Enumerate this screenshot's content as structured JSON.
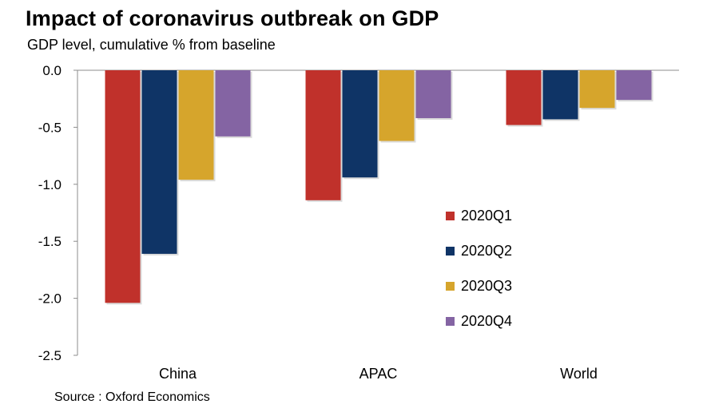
{
  "title": "Impact of coronavirus outbreak on GDP",
  "subtitle": "GDP level, cumulative % from baseline",
  "source": "Source : Oxford Economics",
  "chart_data": {
    "type": "bar",
    "categories": [
      "China",
      "APAC",
      "World"
    ],
    "series": [
      {
        "name": "2020Q1",
        "color": "#c0312b",
        "values": [
          -2.04,
          -1.14,
          -0.48
        ]
      },
      {
        "name": "2020Q2",
        "color": "#0f3466",
        "values": [
          -1.61,
          -0.94,
          -0.43
        ]
      },
      {
        "name": "2020Q3",
        "color": "#d6a52c",
        "values": [
          -0.96,
          -0.62,
          -0.33
        ]
      },
      {
        "name": "2020Q4",
        "color": "#8464a3",
        "values": [
          -0.58,
          -0.42,
          -0.26
        ]
      }
    ],
    "ylim": [
      -2.5,
      0.0
    ],
    "yticks": [
      "0.0",
      "-0.5",
      "-1.0",
      "-1.5",
      "-2.0",
      "-2.5"
    ],
    "ytick_values": [
      0.0,
      -0.5,
      -1.0,
      -1.5,
      -2.0,
      -2.5
    ],
    "grid": false,
    "legend_position": "right"
  }
}
